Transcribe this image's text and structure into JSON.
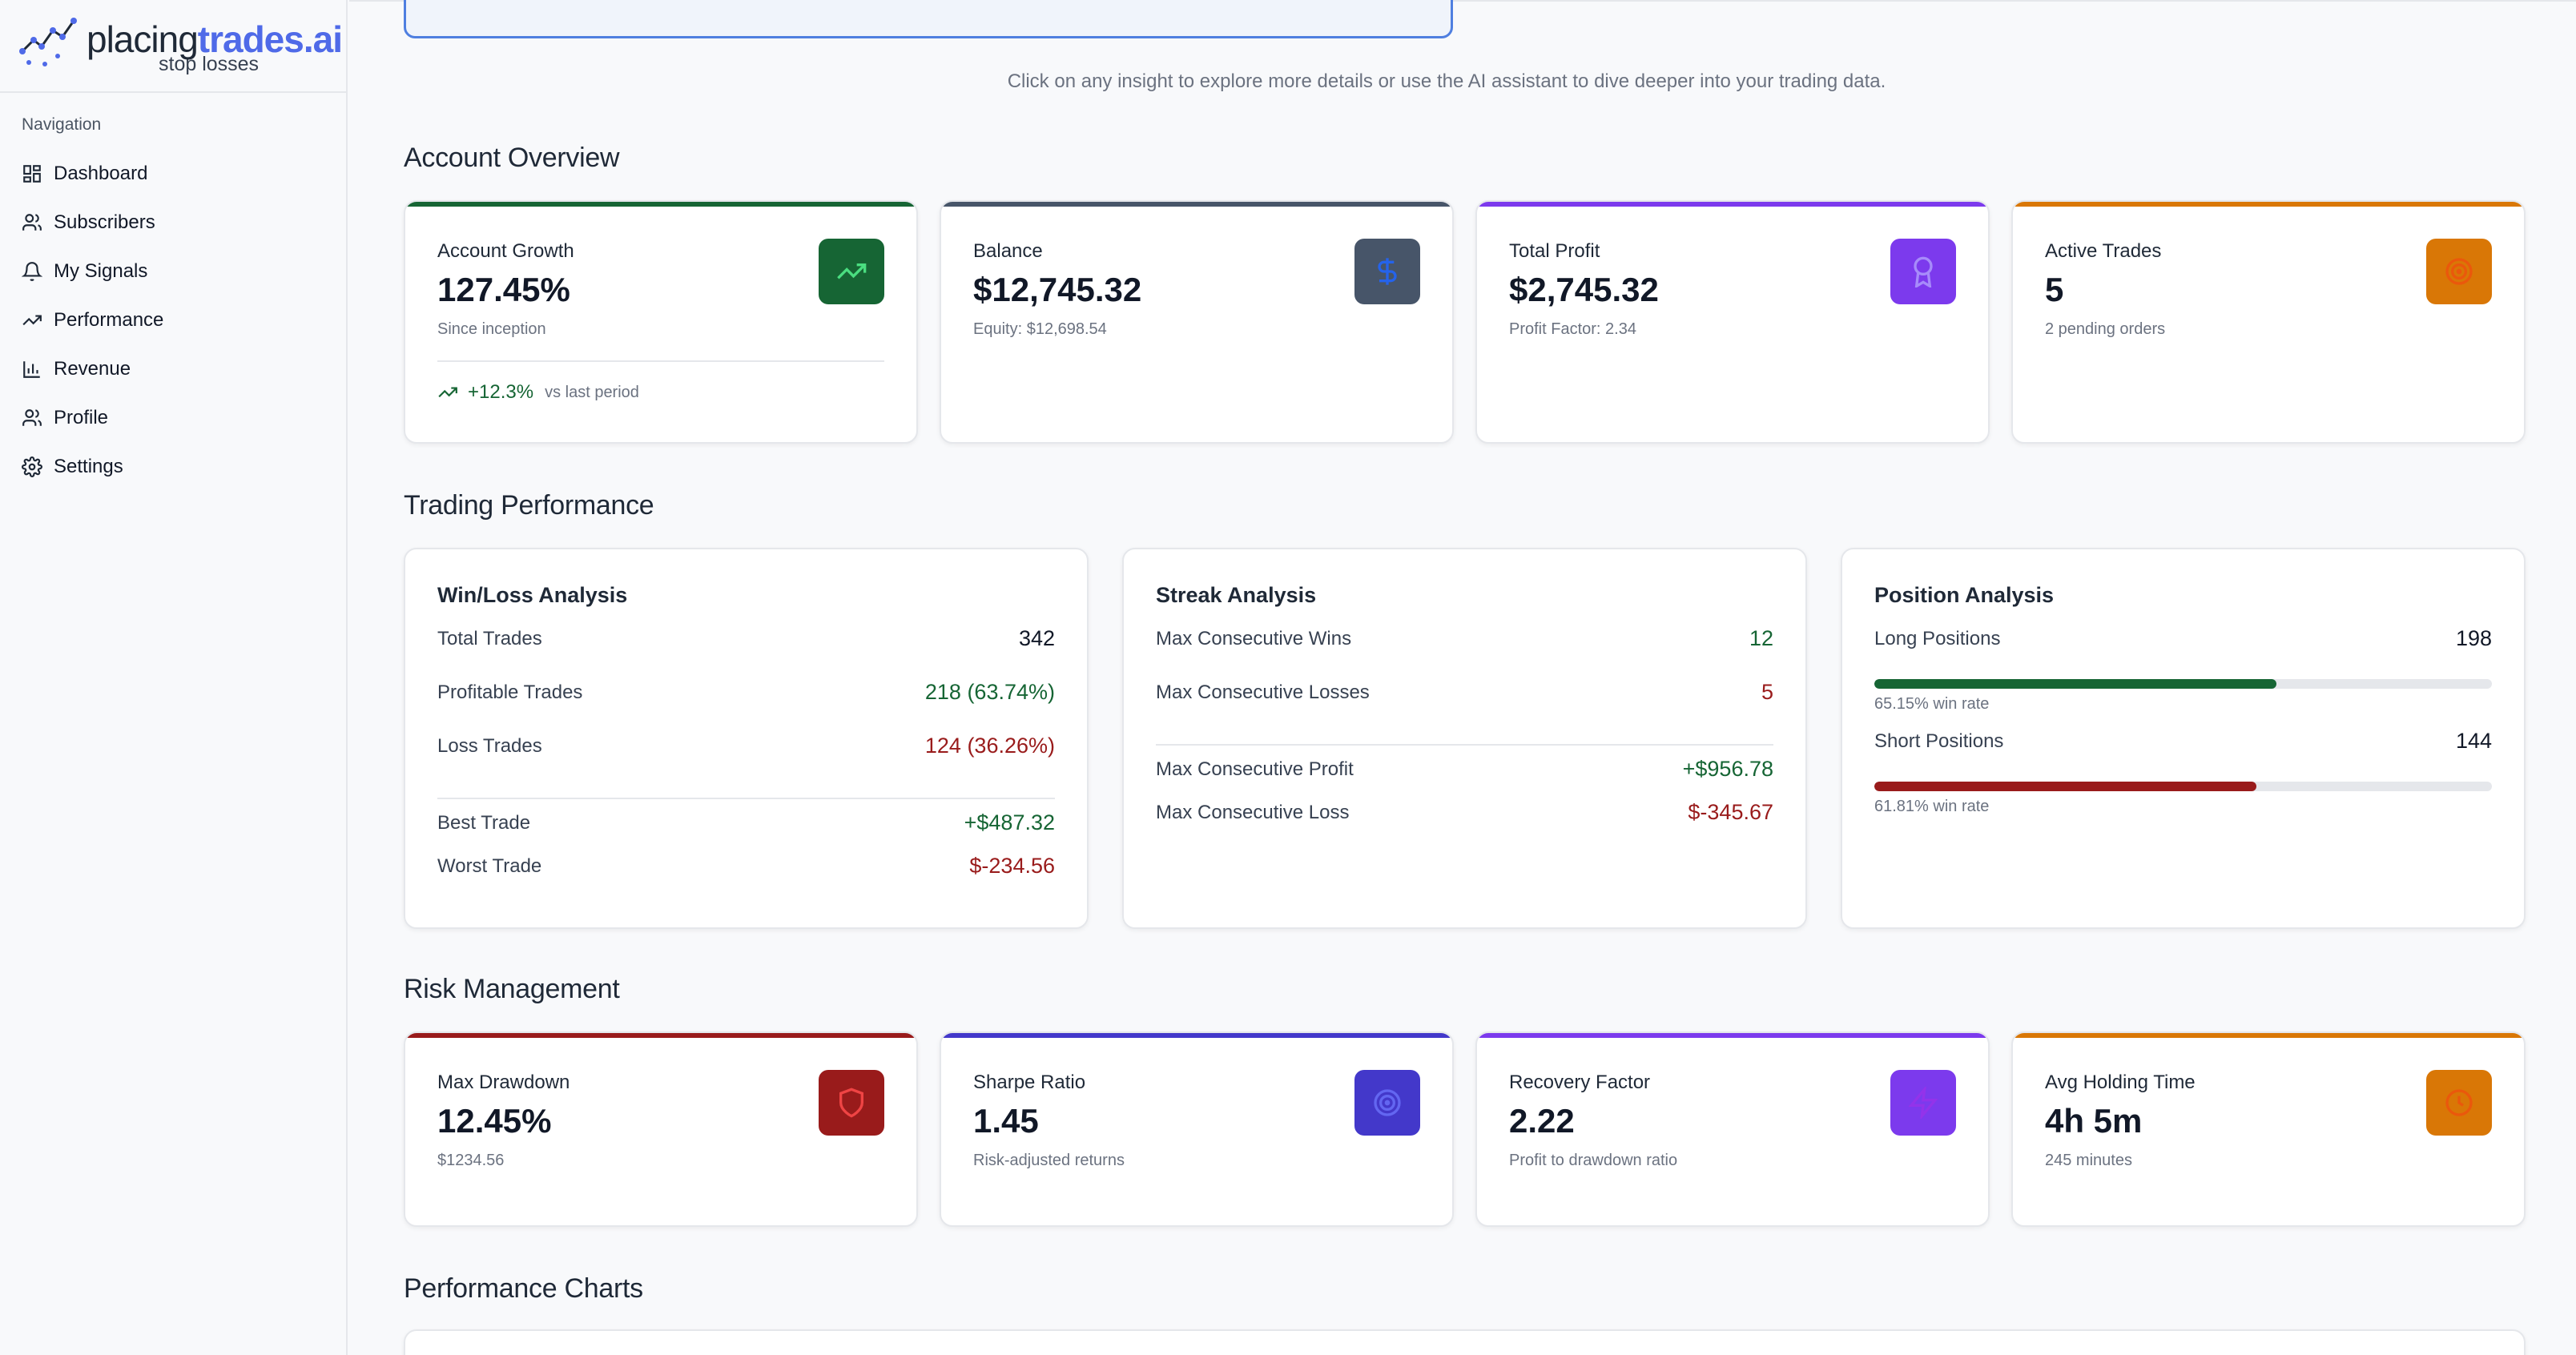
{
  "brand": {
    "name_prefix": "placing",
    "name_highlight": "trades.ai",
    "tagline": "stop losses"
  },
  "sidebar": {
    "heading": "Navigation",
    "items": [
      {
        "label": "Dashboard",
        "icon": "dashboard-icon"
      },
      {
        "label": "Subscribers",
        "icon": "users-icon"
      },
      {
        "label": "My Signals",
        "icon": "bell-icon"
      },
      {
        "label": "Performance",
        "icon": "trending-up-icon"
      },
      {
        "label": "Revenue",
        "icon": "bar-chart-icon"
      },
      {
        "label": "Profile",
        "icon": "users-icon"
      },
      {
        "label": "Settings",
        "icon": "gear-icon"
      }
    ]
  },
  "hint": "Click on any insight to explore more details or use the AI assistant to dive deeper into your trading data.",
  "sections": {
    "account": "Account Overview",
    "trading": "Trading Performance",
    "risk": "Risk Management",
    "charts": "Performance Charts"
  },
  "account_cards": [
    {
      "label": "Account Growth",
      "value": "127.45%",
      "sub": "Since inception",
      "trend": "+12.3%",
      "trend_note": "vs last period",
      "accent": "#166534",
      "icon": "trending-up-icon"
    },
    {
      "label": "Balance",
      "value": "$12,745.32",
      "sub": "Equity: $12,698.54",
      "accent": "#475569",
      "icon": "dollar-icon"
    },
    {
      "label": "Total Profit",
      "value": "$2,745.32",
      "sub": "Profit Factor: 2.34",
      "accent": "#7c3aed",
      "icon": "award-icon"
    },
    {
      "label": "Active Trades",
      "value": "5",
      "sub": "2 pending orders",
      "accent": "#d97706",
      "icon": "target-icon"
    }
  ],
  "winloss": {
    "title": "Win/Loss Analysis",
    "total_label": "Total Trades",
    "total_value": "342",
    "profitable_label": "Profitable Trades",
    "profitable_value": "218 (63.74%)",
    "loss_label": "Loss Trades",
    "loss_value": "124 (36.26%)",
    "best_label": "Best Trade",
    "best_value": "+$487.32",
    "worst_label": "Worst Trade",
    "worst_value": "$-234.56"
  },
  "streak": {
    "title": "Streak Analysis",
    "wins_label": "Max Consecutive Wins",
    "wins_value": "12",
    "losses_label": "Max Consecutive Losses",
    "losses_value": "5",
    "profit_label": "Max Consecutive Profit",
    "profit_value": "+$956.78",
    "loss_label": "Max Consecutive Loss",
    "loss_value": "$-345.67"
  },
  "position": {
    "title": "Position Analysis",
    "long_label": "Long Positions",
    "long_value": "198",
    "long_rate": "65.15% win rate",
    "long_fraction": 0.6515,
    "short_label": "Short Positions",
    "short_value": "144",
    "short_rate": "61.81% win rate",
    "short_fraction": 0.6181
  },
  "risk_cards": [
    {
      "label": "Max Drawdown",
      "value": "12.45%",
      "sub": "$1234.56",
      "accent": "#991b1b",
      "icon": "shield-icon"
    },
    {
      "label": "Sharpe Ratio",
      "value": "1.45",
      "sub": "Risk-adjusted returns",
      "accent": "#4338ca",
      "icon": "target-icon"
    },
    {
      "label": "Recovery Factor",
      "value": "2.22",
      "sub": "Profit to drawdown ratio",
      "accent": "#7c3aed",
      "icon": "zap-icon"
    },
    {
      "label": "Avg Holding Time",
      "value": "4h 5m",
      "sub": "245 minutes",
      "accent": "#d97706",
      "icon": "clock-icon"
    }
  ]
}
